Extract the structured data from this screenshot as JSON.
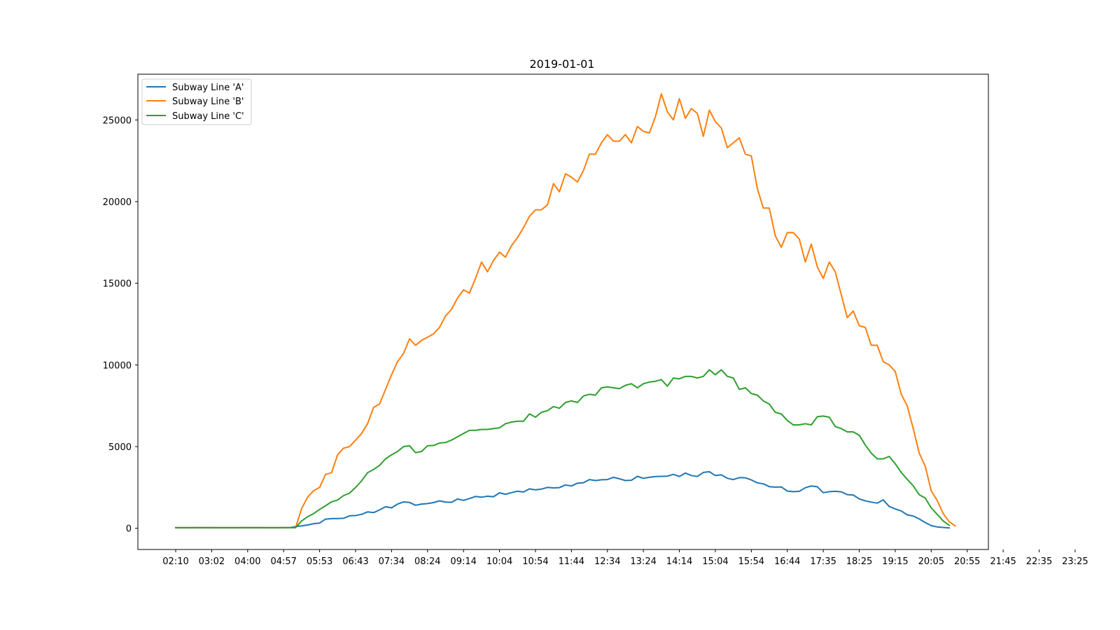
{
  "chart_data": {
    "type": "line",
    "title": "2019-01-01",
    "xlabel": "",
    "ylabel": "",
    "x_tick_labels": [
      "02:10",
      "03:02",
      "04:00",
      "04:57",
      "05:53",
      "06:43",
      "07:34",
      "08:24",
      "09:14",
      "10:04",
      "10:54",
      "11:44",
      "12:34",
      "13:24",
      "14:14",
      "15:04",
      "15:54",
      "16:44",
      "17:35",
      "18:25",
      "19:15",
      "20:05",
      "20:55",
      "21:45",
      "22:35",
      "23:25"
    ],
    "y_ticks": [
      0,
      5000,
      10000,
      15000,
      20000,
      25000
    ],
    "ylim": [
      -1300,
      27800
    ],
    "grid": false,
    "legend_position": "upper-left",
    "series": [
      {
        "name": "Subway Line 'A'",
        "color": "#1f77b4",
        "values": [
          30,
          30,
          30,
          30,
          35,
          35,
          30,
          30,
          30,
          30,
          30,
          30,
          35,
          35,
          35,
          30,
          30,
          30,
          35,
          40,
          100,
          150,
          200,
          280,
          320,
          560,
          590,
          600,
          610,
          760,
          780,
          850,
          1000,
          960,
          1120,
          1320,
          1250,
          1480,
          1610,
          1580,
          1410,
          1480,
          1510,
          1570,
          1680,
          1600,
          1590,
          1790,
          1710,
          1820,
          1950,
          1900,
          1960,
          1930,
          2170,
          2080,
          2180,
          2270,
          2220,
          2410,
          2350,
          2400,
          2500,
          2470,
          2490,
          2650,
          2590,
          2760,
          2790,
          2980,
          2920,
          2970,
          2980,
          3120,
          3030,
          2920,
          2940,
          3180,
          3060,
          3120,
          3170,
          3180,
          3190,
          3300,
          3170,
          3380,
          3230,
          3170,
          3420,
          3460,
          3230,
          3270,
          3060,
          2980,
          3100,
          3090,
          2960,
          2780,
          2720,
          2550,
          2520,
          2530,
          2280,
          2240,
          2260,
          2480,
          2590,
          2540,
          2180,
          2240,
          2260,
          2230,
          2060,
          2040,
          1800,
          1680,
          1600,
          1540,
          1740,
          1330,
          1180,
          1060,
          820,
          750,
          570,
          350,
          160,
          80,
          50,
          20
        ]
      },
      {
        "name": "Subway Line 'B'",
        "color": "#ff7f0e",
        "values": [
          40,
          40,
          40,
          40,
          40,
          40,
          40,
          40,
          40,
          40,
          40,
          40,
          40,
          40,
          40,
          40,
          40,
          40,
          40,
          40,
          40,
          1200,
          1900,
          2300,
          2500,
          3300,
          3400,
          4500,
          4900,
          5000,
          5400,
          5800,
          6400,
          7400,
          7600,
          8500,
          9400,
          10200,
          10700,
          11600,
          11200,
          11500,
          11700,
          11900,
          12300,
          13000,
          13400,
          14100,
          14600,
          14400,
          15300,
          16300,
          15700,
          16400,
          16900,
          16600,
          17300,
          17800,
          18400,
          19100,
          19500,
          19500,
          19800,
          21100,
          20600,
          21700,
          21500,
          21200,
          21900,
          22900,
          22900,
          23600,
          24100,
          23700,
          23700,
          24100,
          23600,
          24600,
          24300,
          24200,
          25200,
          26600,
          25500,
          25000,
          26300,
          25100,
          25700,
          25400,
          24000,
          25600,
          24900,
          24500,
          23300,
          23600,
          23900,
          22900,
          22800,
          20800,
          19600,
          19600,
          17900,
          17200,
          18100,
          18100,
          17700,
          16300,
          17400,
          16000,
          15300,
          16300,
          15700,
          14300,
          12900,
          13300,
          12400,
          12300,
          11200,
          11200,
          10200,
          10000,
          9600,
          8200,
          7500,
          6100,
          4600,
          3800,
          2300,
          1700,
          900,
          400,
          150
        ]
      },
      {
        "name": "Subway Line 'C'",
        "color": "#2ca02c",
        "values": [
          40,
          40,
          40,
          40,
          40,
          40,
          40,
          40,
          40,
          40,
          40,
          40,
          40,
          40,
          40,
          40,
          40,
          40,
          40,
          40,
          40,
          450,
          700,
          900,
          1150,
          1380,
          1620,
          1730,
          2000,
          2150,
          2500,
          2900,
          3400,
          3600,
          3850,
          4250,
          4500,
          4700,
          5000,
          5050,
          4630,
          4700,
          5050,
          5070,
          5220,
          5250,
          5400,
          5600,
          5800,
          6000,
          6000,
          6050,
          6050,
          6100,
          6150,
          6400,
          6500,
          6550,
          6550,
          7000,
          6800,
          7100,
          7200,
          7450,
          7350,
          7700,
          7800,
          7700,
          8100,
          8200,
          8150,
          8600,
          8650,
          8600,
          8550,
          8750,
          8850,
          8600,
          8850,
          8950,
          9000,
          9100,
          8700,
          9200,
          9150,
          9300,
          9300,
          9200,
          9300,
          9700,
          9400,
          9700,
          9300,
          9200,
          8500,
          8600,
          8250,
          8150,
          7800,
          7600,
          7100,
          7000,
          6600,
          6330,
          6330,
          6400,
          6330,
          6830,
          6870,
          6800,
          6230,
          6100,
          5900,
          5900,
          5700,
          5100,
          4600,
          4250,
          4250,
          4400,
          3950,
          3420,
          3000,
          2600,
          2050,
          1850,
          1250,
          850,
          450,
          180
        ]
      }
    ]
  }
}
